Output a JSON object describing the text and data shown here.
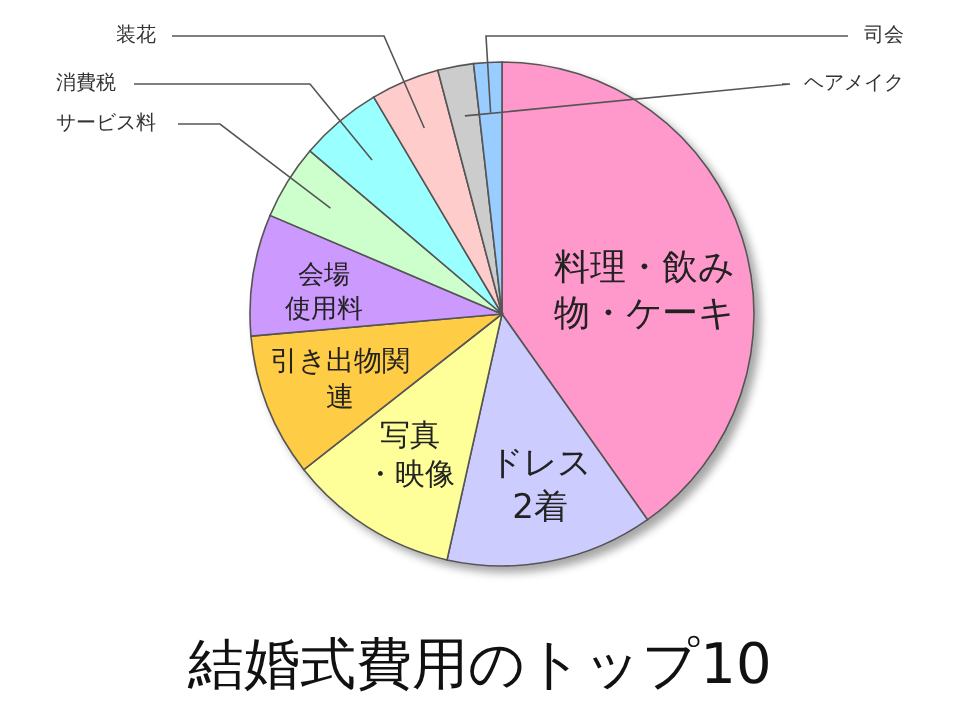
{
  "chart_data": {
    "type": "pie",
    "title": "結婚式費用のトップ10",
    "categories": [
      "料理・飲み物・ケーキ",
      "ドレス2着",
      "写真・映像",
      "引き出物関連",
      "会場使用料",
      "サービス料",
      "消費税",
      "装花",
      "ヘアメイク",
      "司会"
    ],
    "values": [
      40.2,
      13.3,
      10.9,
      9.2,
      7.8,
      4.8,
      5.3,
      4.4,
      2.3,
      1.8
    ],
    "colors": [
      "#ff99cc",
      "#ccccff",
      "#ffff99",
      "#ffcc44",
      "#cc99ff",
      "#ccffcc",
      "#99ffff",
      "#ffcccc",
      "#cccccc",
      "#99ccff"
    ]
  }
}
